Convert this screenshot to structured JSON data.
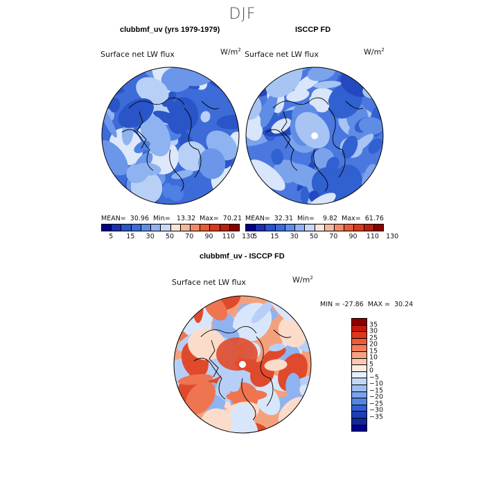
{
  "season": "DJF",
  "panels": {
    "model": {
      "title": "clubbmf_uv (yrs 1979-1979)",
      "variable": "Surface net LW flux",
      "units_base": "W/m",
      "units_exp": "2",
      "stats": "MEAN=  30.96  Min=   13.32  Max=  70.21",
      "palette": [
        "#3d6bd8",
        "#4f80e4",
        "#6b96ea",
        "#2a55c8",
        "#8fb3f0",
        "#b8d0f6",
        "#dde8fb"
      ]
    },
    "obs": {
      "title": "ISCCP FD",
      "variable": "Surface net LW flux",
      "units_base": "W/m",
      "units_exp": "2",
      "stats": "MEAN=  32.31  Min=    9.82  Max=  61.76",
      "palette": [
        "#4a78df",
        "#5f8de6",
        "#3160d0",
        "#7aa3ec",
        "#2448c0",
        "#a7c4f3",
        "#d8e5fb"
      ]
    },
    "diff": {
      "title": "clubbmf_uv - ISCCP FD",
      "variable": "Surface net LW flux",
      "units_base": "W/m",
      "units_exp": "2",
      "stats": "MIN = -27.86  MAX =  30.24",
      "palette": [
        "#f5a07c",
        "#d8e6fb",
        "#ee7550",
        "#b7cff6",
        "#fbdccb",
        "#8fb3f0",
        "#e04a2c"
      ]
    }
  },
  "colorbar_abs": {
    "colors": [
      "#00008b",
      "#1c2fae",
      "#2a55c8",
      "#3d6bd8",
      "#5f8de6",
      "#8fb3f0",
      "#c6d9f8",
      "#fbe3d6",
      "#f5b79b",
      "#f08a66",
      "#e65a37",
      "#d63a1e",
      "#b8200f",
      "#8b0000"
    ],
    "tick_labels": [
      "5",
      "15",
      "30",
      "50",
      "70",
      "90",
      "110",
      "130"
    ]
  },
  "colorbar_diff": {
    "colors": [
      "#8b0000",
      "#c4180c",
      "#e0341c",
      "#ef5a34",
      "#f37d58",
      "#f6a383",
      "#fbc9b3",
      "#fdecdf",
      "#e6effc",
      "#c3d7f7",
      "#9dbdf2",
      "#7aa3ec",
      "#5585e2",
      "#3160d0",
      "#1e3fb5",
      "#10289c",
      "#00008b"
    ],
    "tick_labels": [
      "35",
      "30",
      "25",
      "20",
      "15",
      "10",
      "5",
      "0",
      "−5",
      "−10",
      "−15",
      "−20",
      "−25",
      "−30",
      "−35"
    ]
  }
}
